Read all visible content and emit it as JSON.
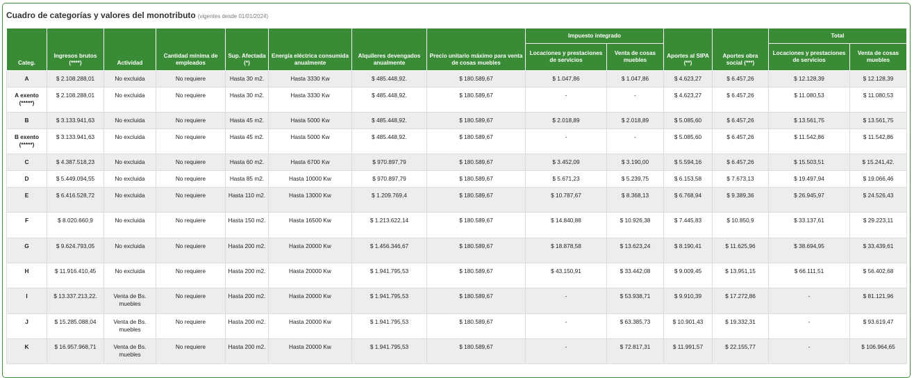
{
  "page": {
    "title": "Cuadro de categorías y valores del monotributo",
    "subtitle": "(vigentes desde 01/01/2024)"
  },
  "headers": {
    "categ": "Categ.",
    "ingresos": "Ingresos brutos (****)",
    "actividad": "Actividad",
    "empleados": "Cantidad mínima de empleados",
    "superficie": "Sup. Afectada (*)",
    "energia": "Energía eléctrica consumida anualmente",
    "alquileres": "Alquileres devengados anualmente",
    "precio": "Precio unitario máximo para venta de cosas muebles",
    "impuesto_group": "Impuesto integrado",
    "imp_locaciones": "Locaciones y prestaciones de servicios",
    "imp_venta": "Venta de cosas muebles",
    "sipa": "Aportes al SIPA (**)",
    "obra_social": "Aportes obra social (***)",
    "total_group": "Total",
    "tot_locaciones": "Locaciones y prestaciones de servicios",
    "tot_venta": "Venta de cosas muebles"
  },
  "rows": [
    {
      "categ": "A",
      "ingresos": "$ 2.108.288,01",
      "actividad": "No excluida",
      "empleados": "No requiere",
      "superficie": "Hasta 30 m2.",
      "energia": "Hasta 3330 Kw",
      "alquileres": "$ 485.448,92.",
      "precio": "$ 180.589,67",
      "imp_loc": "$ 1.047,86",
      "imp_venta": "$ 1.047,86",
      "sipa": "$ 4.623,27",
      "obra_social": "$ 6.457,26",
      "tot_loc": "$ 12.128,39",
      "tot_venta": "$ 12.128,39"
    },
    {
      "categ": "A exento (*****)",
      "ingresos": "$ 2.108.288,01",
      "actividad": "No excluida",
      "empleados": "No requiere",
      "superficie": "Hasta 30 m2.",
      "energia": "Hasta 3330 Kw",
      "alquileres": "$ 485.448,92.",
      "precio": "$ 180.589,67",
      "imp_loc": "-",
      "imp_venta": "-",
      "sipa": "$ 4.623,27",
      "obra_social": "$ 6.457,26",
      "tot_loc": "$ 11.080,53",
      "tot_venta": "$ 11.080,53"
    },
    {
      "categ": "B",
      "ingresos": "$ 3.133.941,63",
      "actividad": "No excluida",
      "empleados": "No requiere",
      "superficie": "Hasta 45 m2.",
      "energia": "Hasta 5000 Kw",
      "alquileres": "$ 485.448,92.",
      "precio": "$ 180.589,67",
      "imp_loc": "$ 2.018,89",
      "imp_venta": "$ 2.018,89",
      "sipa": "$ 5.085,60",
      "obra_social": "$ 6.457,26",
      "tot_loc": "$ 13.561,75",
      "tot_venta": "$ 13.561,75"
    },
    {
      "categ": "B exento (*****)",
      "ingresos": "$ 3.133.941,63",
      "actividad": "No excluida",
      "empleados": "No requiere",
      "superficie": "Hasta 45 m2.",
      "energia": "Hasta 5000 Kw",
      "alquileres": "$ 485.448,92.",
      "precio": "$ 180.589,67",
      "imp_loc": "-",
      "imp_venta": "-",
      "sipa": "$ 5.085,60",
      "obra_social": "$ 6.457,26",
      "tot_loc": "$ 11.542,86",
      "tot_venta": "$ 11.542,86"
    },
    {
      "categ": "C",
      "ingresos": "$ 4.387.518,23",
      "actividad": "No excluida",
      "empleados": "No requiere",
      "superficie": "Hasta 60 m2.",
      "energia": "Hasta 6700 Kw",
      "alquileres": "$ 970.897,79",
      "precio": "$ 180.589,67",
      "imp_loc": "$ 3.452,09",
      "imp_venta": "$ 3.190,00",
      "sipa": "$ 5.594,16",
      "obra_social": "$ 6.457,26",
      "tot_loc": "$ 15.503,51",
      "tot_venta": "$ 15.241,42."
    },
    {
      "categ": "D",
      "ingresos": "$ 5.449.094,55",
      "actividad": "No excluida",
      "empleados": "No requiere",
      "superficie": "Hasta 85 m2.",
      "energia": "Hasta 10000 Kw",
      "alquileres": "$ 970.897,79",
      "precio": "$ 180.589,67",
      "imp_loc": "$ 5.671,23",
      "imp_venta": "$ 5.239,75",
      "sipa": "$ 6.153,58",
      "obra_social": "$ 7.673,13",
      "tot_loc": "$ 19.497,94",
      "tot_venta": "$ 19.066,46"
    },
    {
      "categ": "E",
      "ingresos": "$ 6.416.528,72",
      "actividad": "No excluida",
      "empleados": "No requiere",
      "superficie": "Hasta 110 m2.",
      "energia": "Hasta 13000 Kw",
      "alquileres": "$ 1.209.769,4",
      "precio": "$ 180.589,67",
      "imp_loc": "$ 10.787,67",
      "imp_venta": "$ 8.368,13",
      "sipa": "$ 6.768,94",
      "obra_social": "$ 9.389,36",
      "tot_loc": "$ 26.945,97",
      "tot_venta": "$ 24.526,43"
    },
    {
      "categ": "F",
      "ingresos": "$ 8.020.660,9",
      "actividad": "No excluida",
      "empleados": "No requiere",
      "superficie": "Hasta 150 m2.",
      "energia": "Hasta 16500 Kw",
      "alquileres": "$ 1.213.622,14",
      "precio": "$ 180.589,67",
      "imp_loc": "$ 14.840,88",
      "imp_venta": "$ 10.926,38",
      "sipa": "$ 7.445,83",
      "obra_social": "$ 10.850,9",
      "tot_loc": "$ 33.137,61",
      "tot_venta": "$ 29.223,11"
    },
    {
      "categ": "G",
      "ingresos": "$ 9.624.793,05",
      "actividad": "No excluida",
      "empleados": "No requiere",
      "superficie": "Hasta 200 m2.",
      "energia": "Hasta 20000 Kw",
      "alquileres": "$ 1.456.346,67",
      "precio": "$ 180.589,67",
      "imp_loc": "$ 18.878,58",
      "imp_venta": "$ 13.623,24",
      "sipa": "$ 8.190,41",
      "obra_social": "$ 11.625,96",
      "tot_loc": "$ 38.694,95",
      "tot_venta": "$ 33.439,61"
    },
    {
      "categ": "H",
      "ingresos": "$ 11.916.410,45",
      "actividad": "No excluida",
      "empleados": "No requiere",
      "superficie": "Hasta 200 m2.",
      "energia": "Hasta 20000 Kw",
      "alquileres": "$ 1.941.795,53",
      "precio": "$ 180.589,67",
      "imp_loc": "$ 43.150,91",
      "imp_venta": "$ 33.442,08",
      "sipa": "$ 9.009,45",
      "obra_social": "$ 13.951,15",
      "tot_loc": "$ 66.111,51",
      "tot_venta": "$ 56.402,68"
    },
    {
      "categ": "I",
      "ingresos": "$ 13.337.213,22.",
      "actividad": "Venta de Bs. muebles",
      "empleados": "No requiere",
      "superficie": "Hasta 200 m2.",
      "energia": "Hasta 20000 Kw",
      "alquileres": "$ 1.941.795,53",
      "precio": "$ 180.589,67",
      "imp_loc": "-",
      "imp_venta": "$ 53.938,71",
      "sipa": "$ 9.910,39",
      "obra_social": "$ 17.272,86",
      "tot_loc": "-",
      "tot_venta": "$ 81.121,96"
    },
    {
      "categ": "J",
      "ingresos": "$ 15.285.088,04",
      "actividad": "Venta de Bs. muebles",
      "empleados": "No requiere",
      "superficie": "Hasta 200 m2.",
      "energia": "Hasta 20000 Kw",
      "alquileres": "$ 1.941.795,53",
      "precio": "$ 180.589,67",
      "imp_loc": "-",
      "imp_venta": "$ 63.385,73",
      "sipa": "$ 10.901,43",
      "obra_social": "$ 19.332,31",
      "tot_loc": "-",
      "tot_venta": "$ 93.619,47"
    },
    {
      "categ": "K",
      "ingresos": "$ 16.957.968,71",
      "actividad": "Venta de Bs. muebles",
      "empleados": "No requiere",
      "superficie": "Hasta 200 m2.",
      "energia": "Hasta 20000 Kw",
      "alquileres": "$ 1.941.795,53",
      "precio": "$ 180.589,67",
      "imp_loc": "-",
      "imp_venta": "$ 72.817,31",
      "sipa": "$ 11.991,57",
      "obra_social": "$ 22.155,77",
      "tot_loc": "-",
      "tot_venta": "$ 106.964,65"
    }
  ]
}
